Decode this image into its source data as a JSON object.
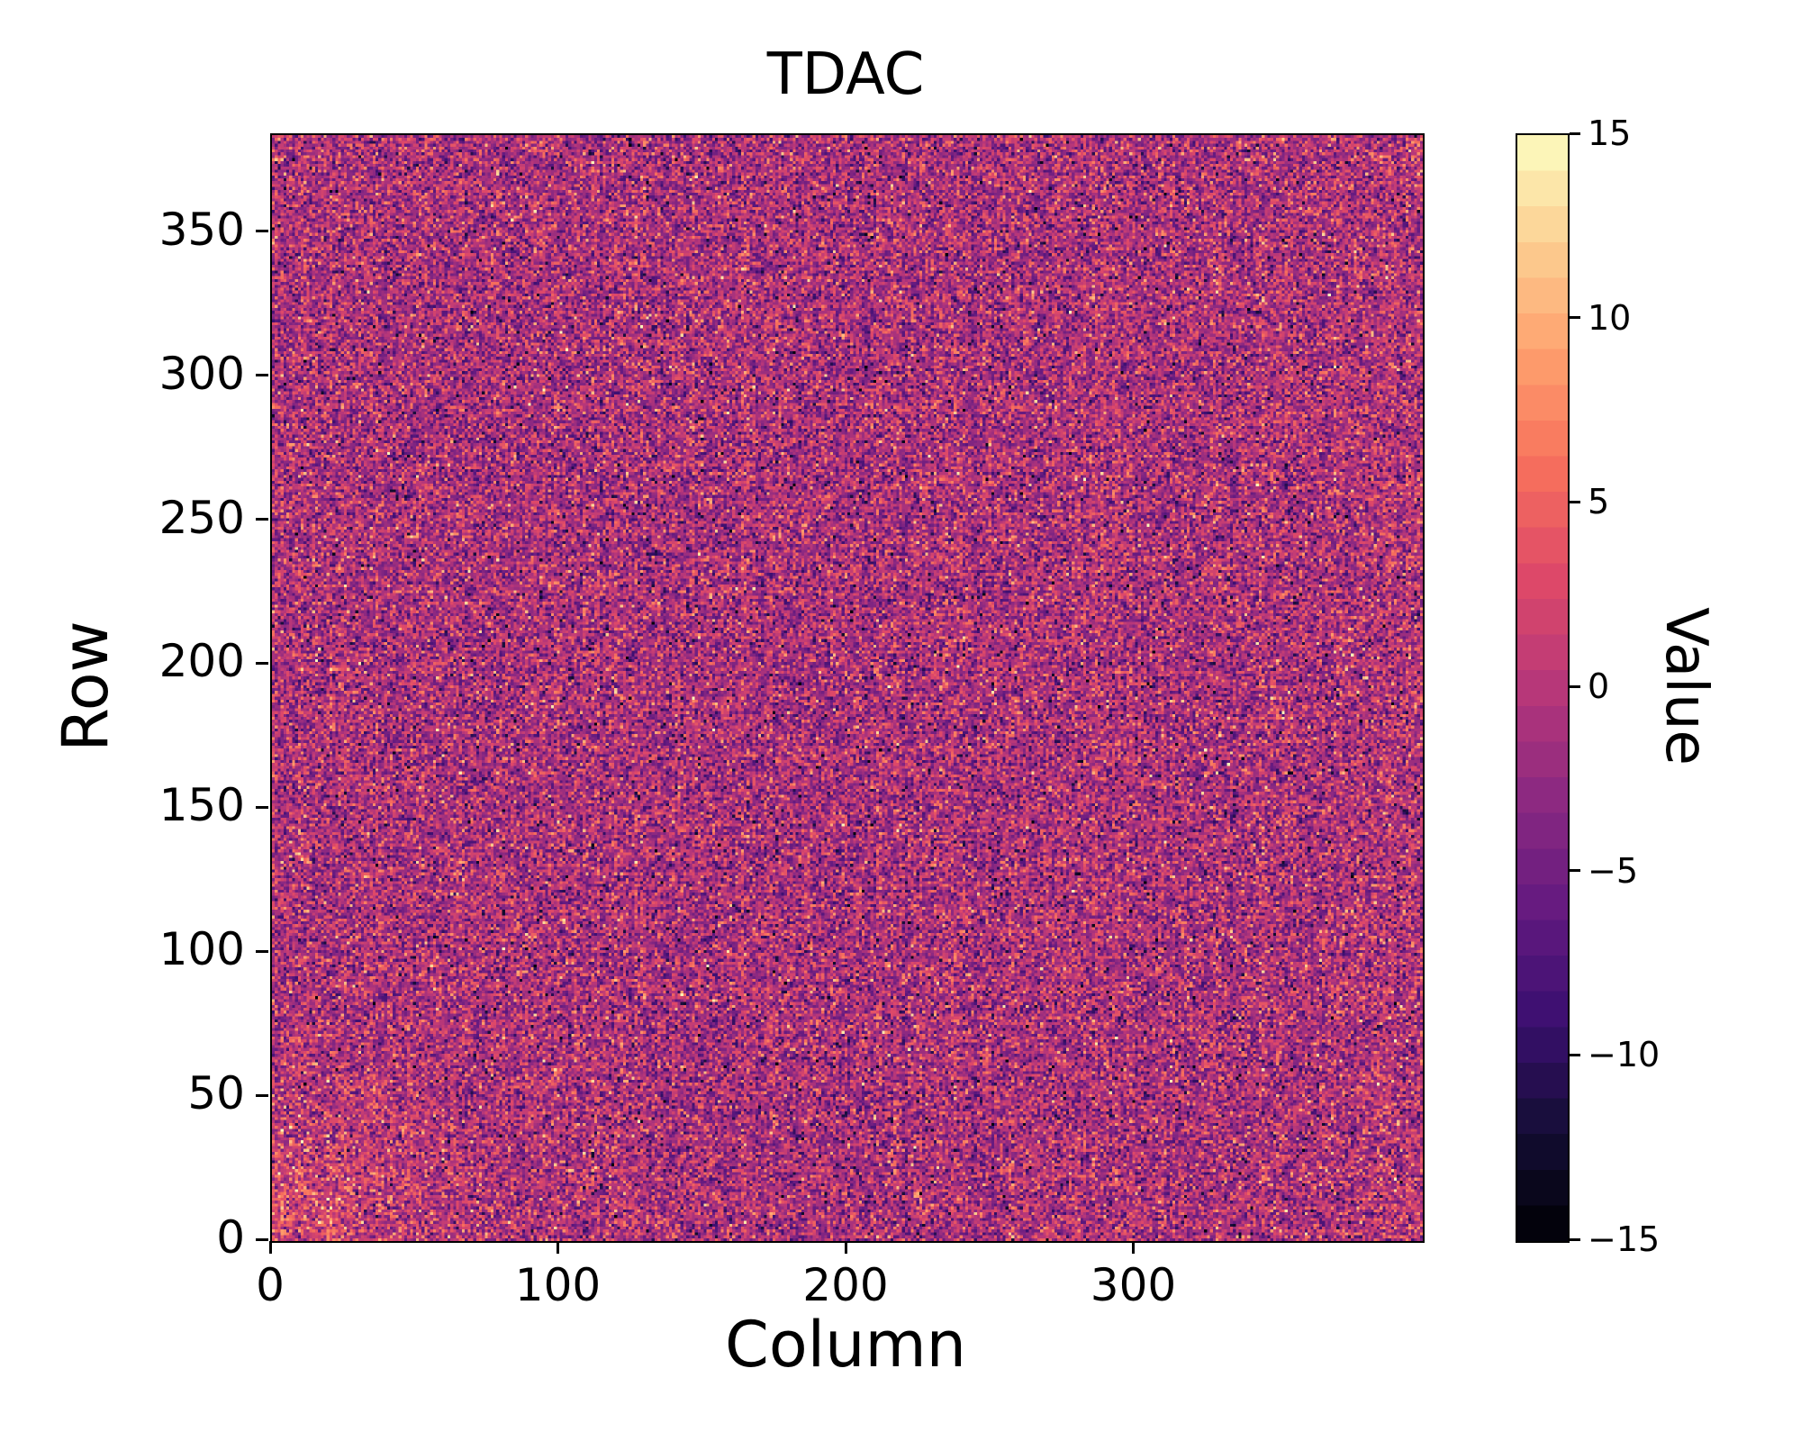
{
  "figure": {
    "title": "TDAC"
  },
  "chart_data": {
    "type": "heatmap",
    "title": "TDAC",
    "xlabel": "Column",
    "ylabel": "Row",
    "colorbar_label": "Value",
    "grid_size": {
      "columns": 400,
      "rows": 384
    },
    "x_range": [
      0,
      400
    ],
    "y_range": [
      0,
      384
    ],
    "value_range": [
      -15,
      15
    ],
    "x_ticks": [
      0,
      100,
      200,
      300
    ],
    "x_tick_labels": [
      "0",
      "100",
      "200",
      "300"
    ],
    "y_ticks": [
      0,
      50,
      100,
      150,
      200,
      250,
      300,
      350
    ],
    "y_tick_labels": [
      "0",
      "50",
      "100",
      "150",
      "200",
      "250",
      "300",
      "350"
    ],
    "colorbar_ticks": [
      15,
      10,
      5,
      0,
      -5,
      -10,
      -15
    ],
    "colorbar_tick_labels": [
      "15",
      "10",
      "5",
      "0",
      "−5",
      "−10",
      "−15"
    ],
    "colormap": "magma",
    "colormap_levels": 31,
    "colormap_stops": [
      "#000004",
      "#140e36",
      "#3b0f70",
      "#641a80",
      "#8c2981",
      "#b73779",
      "#de4968",
      "#f7705c",
      "#fe9f6d",
      "#fcce91",
      "#fcfdbf"
    ],
    "grid": false,
    "noise_model": {
      "distribution": "gaussian",
      "mean": -1.0,
      "std": 4.4,
      "clip": [
        -15,
        15
      ],
      "values_are_integers": true,
      "bottom_left_hotspot_bias": 3.5,
      "description": "Per-pixel TDAC tuning values rendered as dense random speckle noise centered near 0 (purple/magenta), with sparse bright (high) and dark (low) outlier pixels and a slightly brighter patch in the bottom-left corner."
    }
  }
}
